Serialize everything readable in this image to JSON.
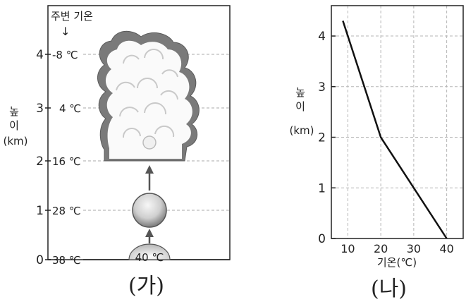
{
  "figure_a": {
    "caption": "(가)",
    "ambient_header": "주변 기온",
    "arrow_glyph": "↓",
    "y_axis_label": [
      "높",
      "이",
      "(km)"
    ],
    "levels": [
      {
        "height": "0",
        "temp": "38 ℃"
      },
      {
        "height": "1",
        "temp": "28 ℃"
      },
      {
        "height": "2",
        "temp": "16 ℃"
      },
      {
        "height": "3",
        "temp": "4 ℃"
      },
      {
        "height": "4",
        "temp": "-8 ℃"
      }
    ],
    "ground_air_temp": "40 ℃",
    "colors": {
      "cloud_outline": "#777777",
      "parcel_dark": "#666666",
      "parcel_light": "#f0f0f0",
      "grid": "#aaaaaa"
    }
  },
  "figure_b": {
    "caption": "(나)",
    "y_axis_label": [
      "높",
      "이",
      "(km)"
    ],
    "x_axis_label": "기온(℃)"
  },
  "chart_data": {
    "type": "line",
    "title": "",
    "xlabel": "기온(℃)",
    "ylabel": "높이(km)",
    "x_ticks": [
      10,
      20,
      30,
      40
    ],
    "y_ticks": [
      0,
      1,
      2,
      3,
      4
    ],
    "xlim": [
      5,
      45
    ],
    "ylim": [
      0,
      4.6
    ],
    "grid": true,
    "series": [
      {
        "x": [
          40,
          20,
          8.5
        ],
        "y": [
          0,
          2,
          4.3
        ]
      }
    ]
  }
}
